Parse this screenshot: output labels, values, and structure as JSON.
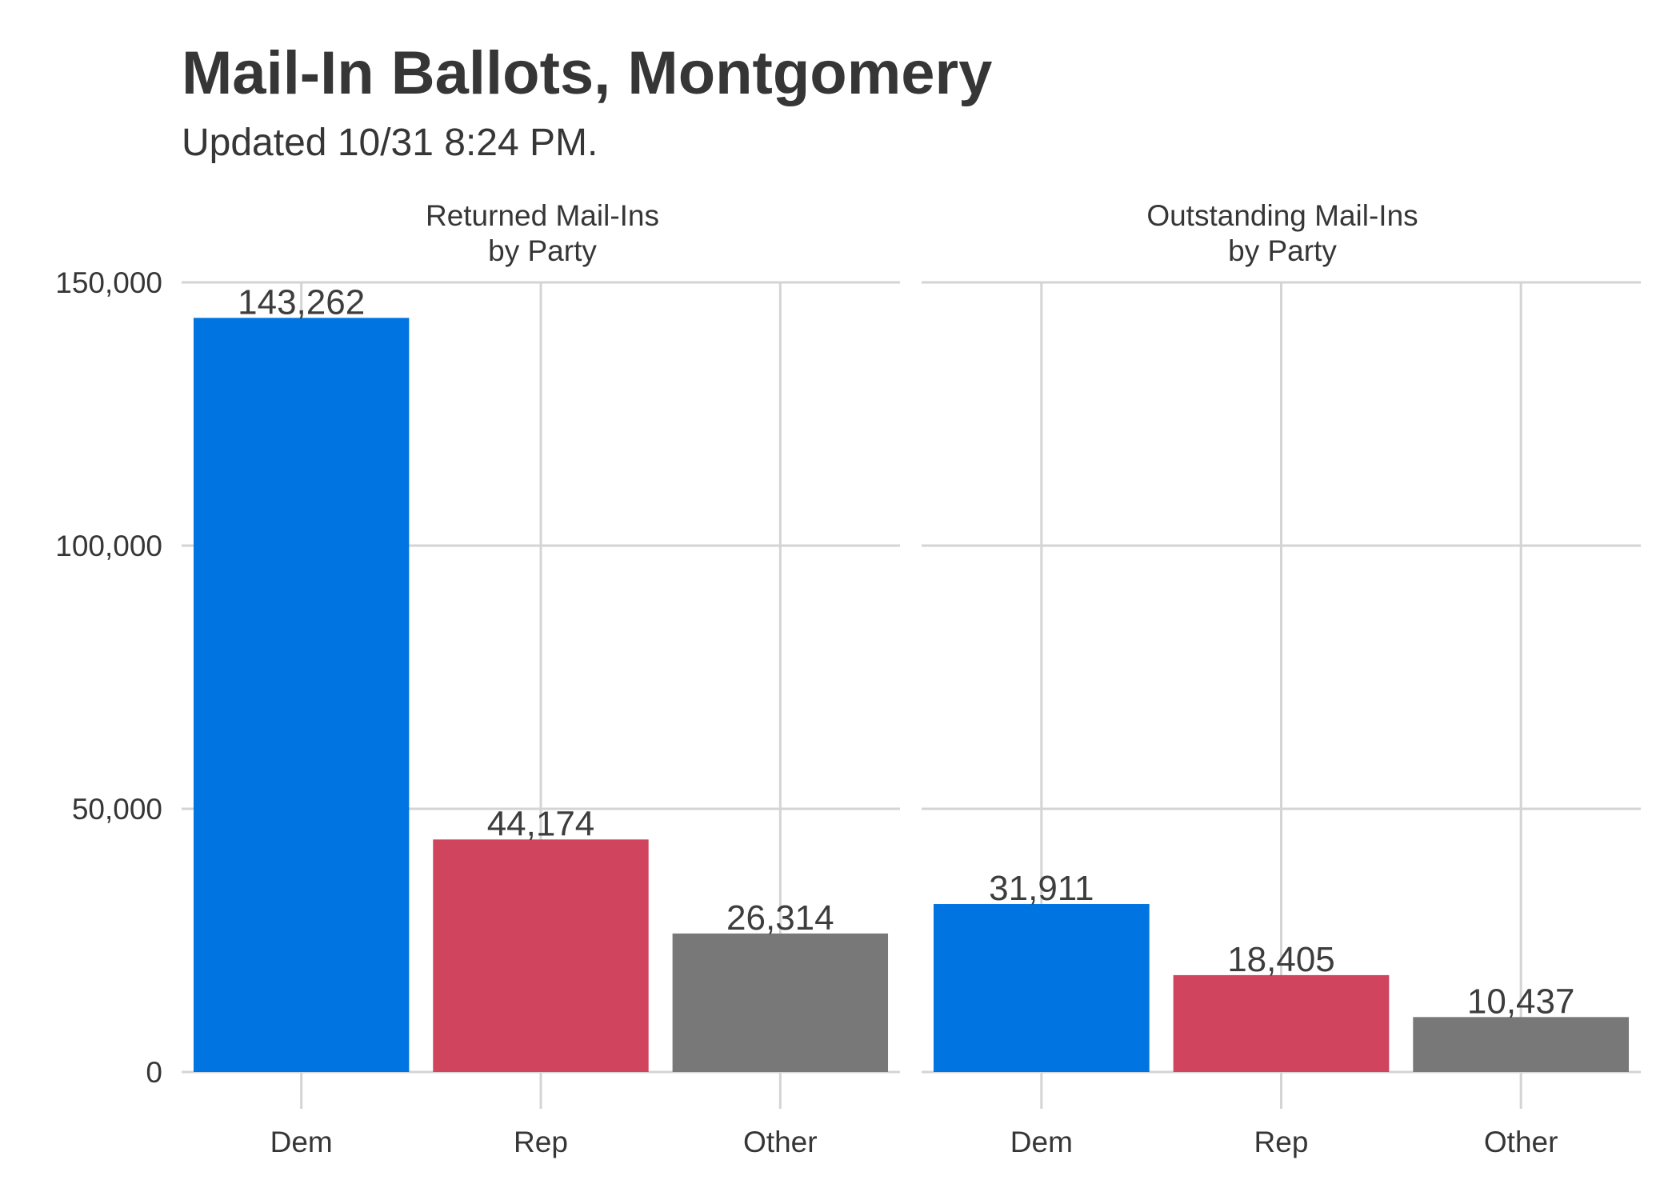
{
  "chart_data": {
    "type": "bar",
    "title": "Mail-In Ballots, Montgomery",
    "subtitle": "Updated 10/31 8:24 PM.",
    "xlabel": "",
    "ylabel": "",
    "categories": [
      "Dem",
      "Rep",
      "Other"
    ],
    "colors": {
      "Dem": "#0075e1",
      "Rep": "#d0445e",
      "Other": "#787878"
    },
    "ylim": [
      0,
      150000
    ],
    "y_ticks": [
      0,
      50000,
      100000,
      150000
    ],
    "y_tick_labels": [
      "0",
      "50,000",
      "100,000",
      "150,000"
    ],
    "grid": true,
    "panels": [
      {
        "title_line1": "Returned Mail-Ins",
        "title_line2": "by Party",
        "values": [
          143262,
          44174,
          26314
        ],
        "value_labels": [
          "143,262",
          "44,174",
          "26,314"
        ]
      },
      {
        "title_line1": "Outstanding Mail-Ins",
        "title_line2": "by Party",
        "values": [
          31911,
          18405,
          10437
        ],
        "value_labels": [
          "31,911",
          "18,405",
          "10,437"
        ]
      }
    ]
  }
}
